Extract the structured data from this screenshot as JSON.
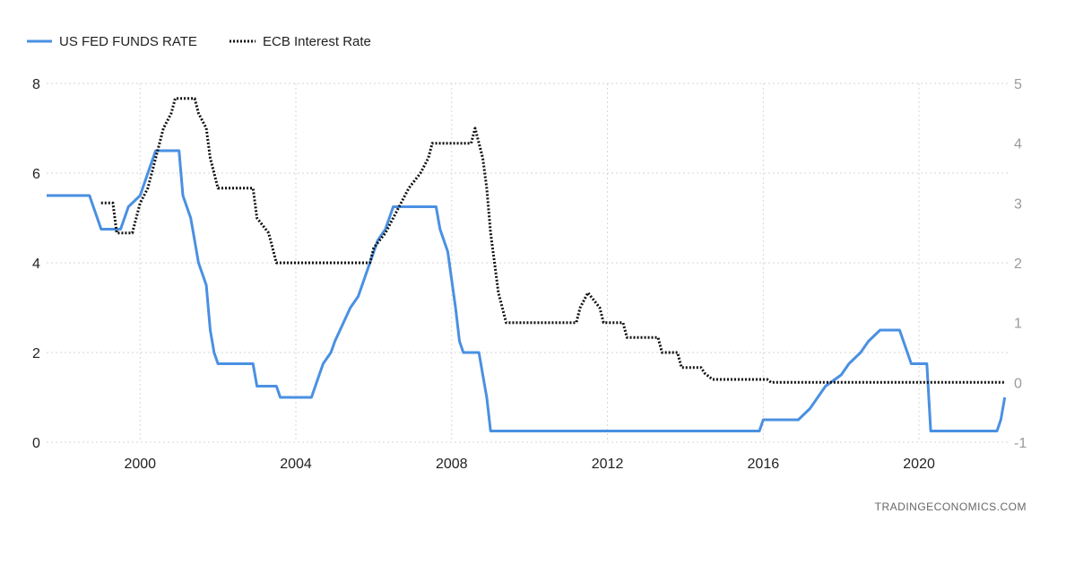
{
  "watermark": "TRADINGECONOMICS.COM",
  "chart_data": {
    "type": "line",
    "title": "",
    "xlabel": "",
    "ylabel": "",
    "legend_position": "top-left",
    "grid": true,
    "xlim": [
      1997.6,
      2022.3
    ],
    "x_ticks": [
      2000,
      2004,
      2008,
      2012,
      2016,
      2020
    ],
    "x_tick_labels": [
      "2000",
      "2004",
      "2008",
      "2012",
      "2016",
      "2020"
    ],
    "y_left": {
      "lim": [
        0,
        8
      ],
      "ticks": [
        0,
        2,
        4,
        6,
        8
      ],
      "tick_labels": [
        "0",
        "2",
        "4",
        "6",
        "8"
      ]
    },
    "y_right": {
      "lim": [
        -1,
        5
      ],
      "ticks": [
        -1,
        0,
        1,
        2,
        3,
        4,
        5
      ],
      "tick_labels": [
        "-1",
        "0",
        "1",
        "2",
        "3",
        "4",
        "5"
      ]
    },
    "series": [
      {
        "name": "US FED FUNDS RATE",
        "axis": "left",
        "color": "#4a90e2",
        "style": "solid",
        "points": [
          [
            1997.6,
            5.5
          ],
          [
            1998.7,
            5.5
          ],
          [
            1998.8,
            5.25
          ],
          [
            1998.9,
            5.0
          ],
          [
            1999.0,
            4.75
          ],
          [
            1999.5,
            4.75
          ],
          [
            1999.6,
            5.0
          ],
          [
            1999.7,
            5.25
          ],
          [
            2000.0,
            5.5
          ],
          [
            2000.2,
            6.0
          ],
          [
            2000.4,
            6.5
          ],
          [
            2001.0,
            6.5
          ],
          [
            2001.1,
            5.5
          ],
          [
            2001.3,
            5.0
          ],
          [
            2001.4,
            4.5
          ],
          [
            2001.5,
            4.0
          ],
          [
            2001.6,
            3.75
          ],
          [
            2001.7,
            3.5
          ],
          [
            2001.8,
            2.5
          ],
          [
            2001.9,
            2.0
          ],
          [
            2002.0,
            1.75
          ],
          [
            2002.9,
            1.75
          ],
          [
            2003.0,
            1.25
          ],
          [
            2003.5,
            1.25
          ],
          [
            2003.6,
            1.0
          ],
          [
            2004.4,
            1.0
          ],
          [
            2004.5,
            1.25
          ],
          [
            2004.7,
            1.75
          ],
          [
            2004.9,
            2.0
          ],
          [
            2005.0,
            2.25
          ],
          [
            2005.4,
            3.0
          ],
          [
            2005.6,
            3.25
          ],
          [
            2005.9,
            4.0
          ],
          [
            2006.1,
            4.5
          ],
          [
            2006.3,
            4.75
          ],
          [
            2006.5,
            5.25
          ],
          [
            2007.6,
            5.25
          ],
          [
            2007.7,
            4.75
          ],
          [
            2007.8,
            4.5
          ],
          [
            2007.9,
            4.25
          ],
          [
            2008.1,
            3.0
          ],
          [
            2008.2,
            2.25
          ],
          [
            2008.3,
            2.0
          ],
          [
            2008.7,
            2.0
          ],
          [
            2008.8,
            1.5
          ],
          [
            2008.9,
            1.0
          ],
          [
            2009.0,
            0.25
          ],
          [
            2015.9,
            0.25
          ],
          [
            2016.0,
            0.5
          ],
          [
            2016.9,
            0.5
          ],
          [
            2017.2,
            0.75
          ],
          [
            2017.4,
            1.0
          ],
          [
            2017.6,
            1.25
          ],
          [
            2018.0,
            1.5
          ],
          [
            2018.2,
            1.75
          ],
          [
            2018.5,
            2.0
          ],
          [
            2018.7,
            2.25
          ],
          [
            2019.0,
            2.5
          ],
          [
            2019.5,
            2.5
          ],
          [
            2019.6,
            2.25
          ],
          [
            2019.8,
            1.75
          ],
          [
            2020.2,
            1.75
          ],
          [
            2020.3,
            0.25
          ],
          [
            2022.0,
            0.25
          ],
          [
            2022.1,
            0.5
          ],
          [
            2022.2,
            1.0
          ]
        ]
      },
      {
        "name": "ECB Interest Rate",
        "axis": "right",
        "color": "#111111",
        "style": "dotted",
        "points": [
          [
            1999.0,
            3.0
          ],
          [
            1999.3,
            3.0
          ],
          [
            1999.4,
            2.5
          ],
          [
            1999.8,
            2.5
          ],
          [
            2000.0,
            3.0
          ],
          [
            2000.2,
            3.25
          ],
          [
            2000.4,
            3.75
          ],
          [
            2000.6,
            4.25
          ],
          [
            2000.8,
            4.5
          ],
          [
            2000.9,
            4.75
          ],
          [
            2001.4,
            4.75
          ],
          [
            2001.5,
            4.5
          ],
          [
            2001.7,
            4.25
          ],
          [
            2001.8,
            3.75
          ],
          [
            2001.9,
            3.5
          ],
          [
            2002.0,
            3.25
          ],
          [
            2002.9,
            3.25
          ],
          [
            2003.0,
            2.75
          ],
          [
            2003.3,
            2.5
          ],
          [
            2003.5,
            2.0
          ],
          [
            2005.9,
            2.0
          ],
          [
            2006.0,
            2.25
          ],
          [
            2006.3,
            2.5
          ],
          [
            2006.5,
            2.75
          ],
          [
            2006.7,
            3.0
          ],
          [
            2006.9,
            3.25
          ],
          [
            2007.2,
            3.5
          ],
          [
            2007.4,
            3.75
          ],
          [
            2007.5,
            4.0
          ],
          [
            2008.5,
            4.0
          ],
          [
            2008.6,
            4.25
          ],
          [
            2008.8,
            3.75
          ],
          [
            2008.9,
            3.25
          ],
          [
            2009.0,
            2.5
          ],
          [
            2009.1,
            2.0
          ],
          [
            2009.2,
            1.5
          ],
          [
            2009.4,
            1.0
          ],
          [
            2011.2,
            1.0
          ],
          [
            2011.3,
            1.25
          ],
          [
            2011.5,
            1.5
          ],
          [
            2011.8,
            1.25
          ],
          [
            2011.9,
            1.0
          ],
          [
            2012.4,
            1.0
          ],
          [
            2012.5,
            0.75
          ],
          [
            2013.3,
            0.75
          ],
          [
            2013.4,
            0.5
          ],
          [
            2013.8,
            0.5
          ],
          [
            2013.9,
            0.25
          ],
          [
            2014.4,
            0.25
          ],
          [
            2014.5,
            0.15
          ],
          [
            2014.7,
            0.05
          ],
          [
            2016.1,
            0.05
          ],
          [
            2016.2,
            0.0
          ],
          [
            2022.2,
            0.0
          ]
        ]
      }
    ]
  }
}
